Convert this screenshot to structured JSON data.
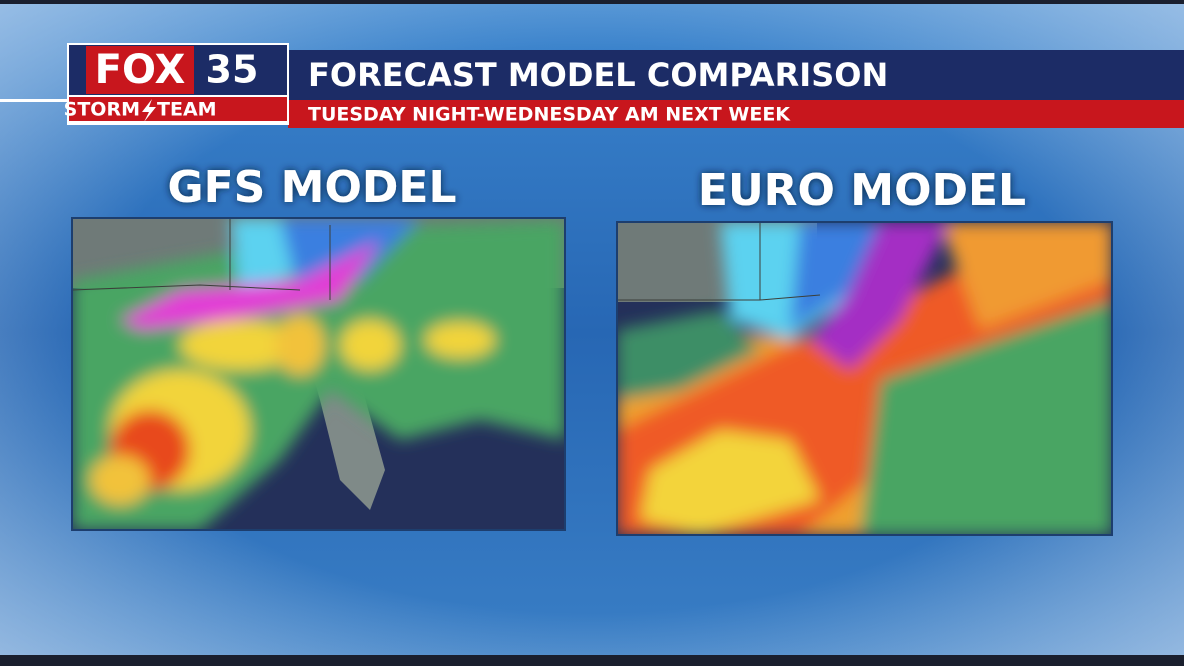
{
  "logo": {
    "brand": "FOX",
    "channel": "35",
    "team_left": "STORM",
    "team_right": "TEAM"
  },
  "header": {
    "title": "FORECAST MODEL COMPARISON",
    "subtitle": "TUESDAY NIGHT-WEDNESDAY AM NEXT WEEK"
  },
  "panels": [
    {
      "title": "GFS MODEL"
    },
    {
      "title": "EURO MODEL"
    }
  ]
}
